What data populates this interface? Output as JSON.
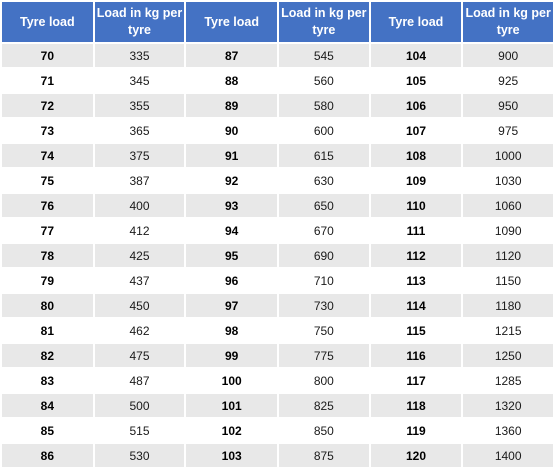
{
  "headers": [
    "Tyre load",
    "Load in kg per tyre",
    "Tyre load",
    "Load in kg per tyre",
    "Tyre load",
    "Load in kg per tyre"
  ],
  "rows": [
    [
      "70",
      "335",
      "87",
      "545",
      "104",
      "900"
    ],
    [
      "71",
      "345",
      "88",
      "560",
      "105",
      "925"
    ],
    [
      "72",
      "355",
      "89",
      "580",
      "106",
      "950"
    ],
    [
      "73",
      "365",
      "90",
      "600",
      "107",
      "975"
    ],
    [
      "74",
      "375",
      "91",
      "615",
      "108",
      "1000"
    ],
    [
      "75",
      "387",
      "92",
      "630",
      "109",
      "1030"
    ],
    [
      "76",
      "400",
      "93",
      "650",
      "110",
      "1060"
    ],
    [
      "77",
      "412",
      "94",
      "670",
      "111",
      "1090"
    ],
    [
      "78",
      "425",
      "95",
      "690",
      "112",
      "1120"
    ],
    [
      "79",
      "437",
      "96",
      "710",
      "113",
      "1150"
    ],
    [
      "80",
      "450",
      "97",
      "730",
      "114",
      "1180"
    ],
    [
      "81",
      "462",
      "98",
      "750",
      "115",
      "1215"
    ],
    [
      "82",
      "475",
      "99",
      "775",
      "116",
      "1250"
    ],
    [
      "83",
      "487",
      "100",
      "800",
      "117",
      "1285"
    ],
    [
      "84",
      "500",
      "101",
      "825",
      "118",
      "1320"
    ],
    [
      "85",
      "515",
      "102",
      "850",
      "119",
      "1360"
    ],
    [
      "86",
      "530",
      "103",
      "875",
      "120",
      "1400"
    ]
  ],
  "colors": {
    "header_bg": "#4472c4",
    "header_text": "#ffffff",
    "row_alt_bg": "#e8e8e8",
    "row_bg": "#ffffff"
  }
}
